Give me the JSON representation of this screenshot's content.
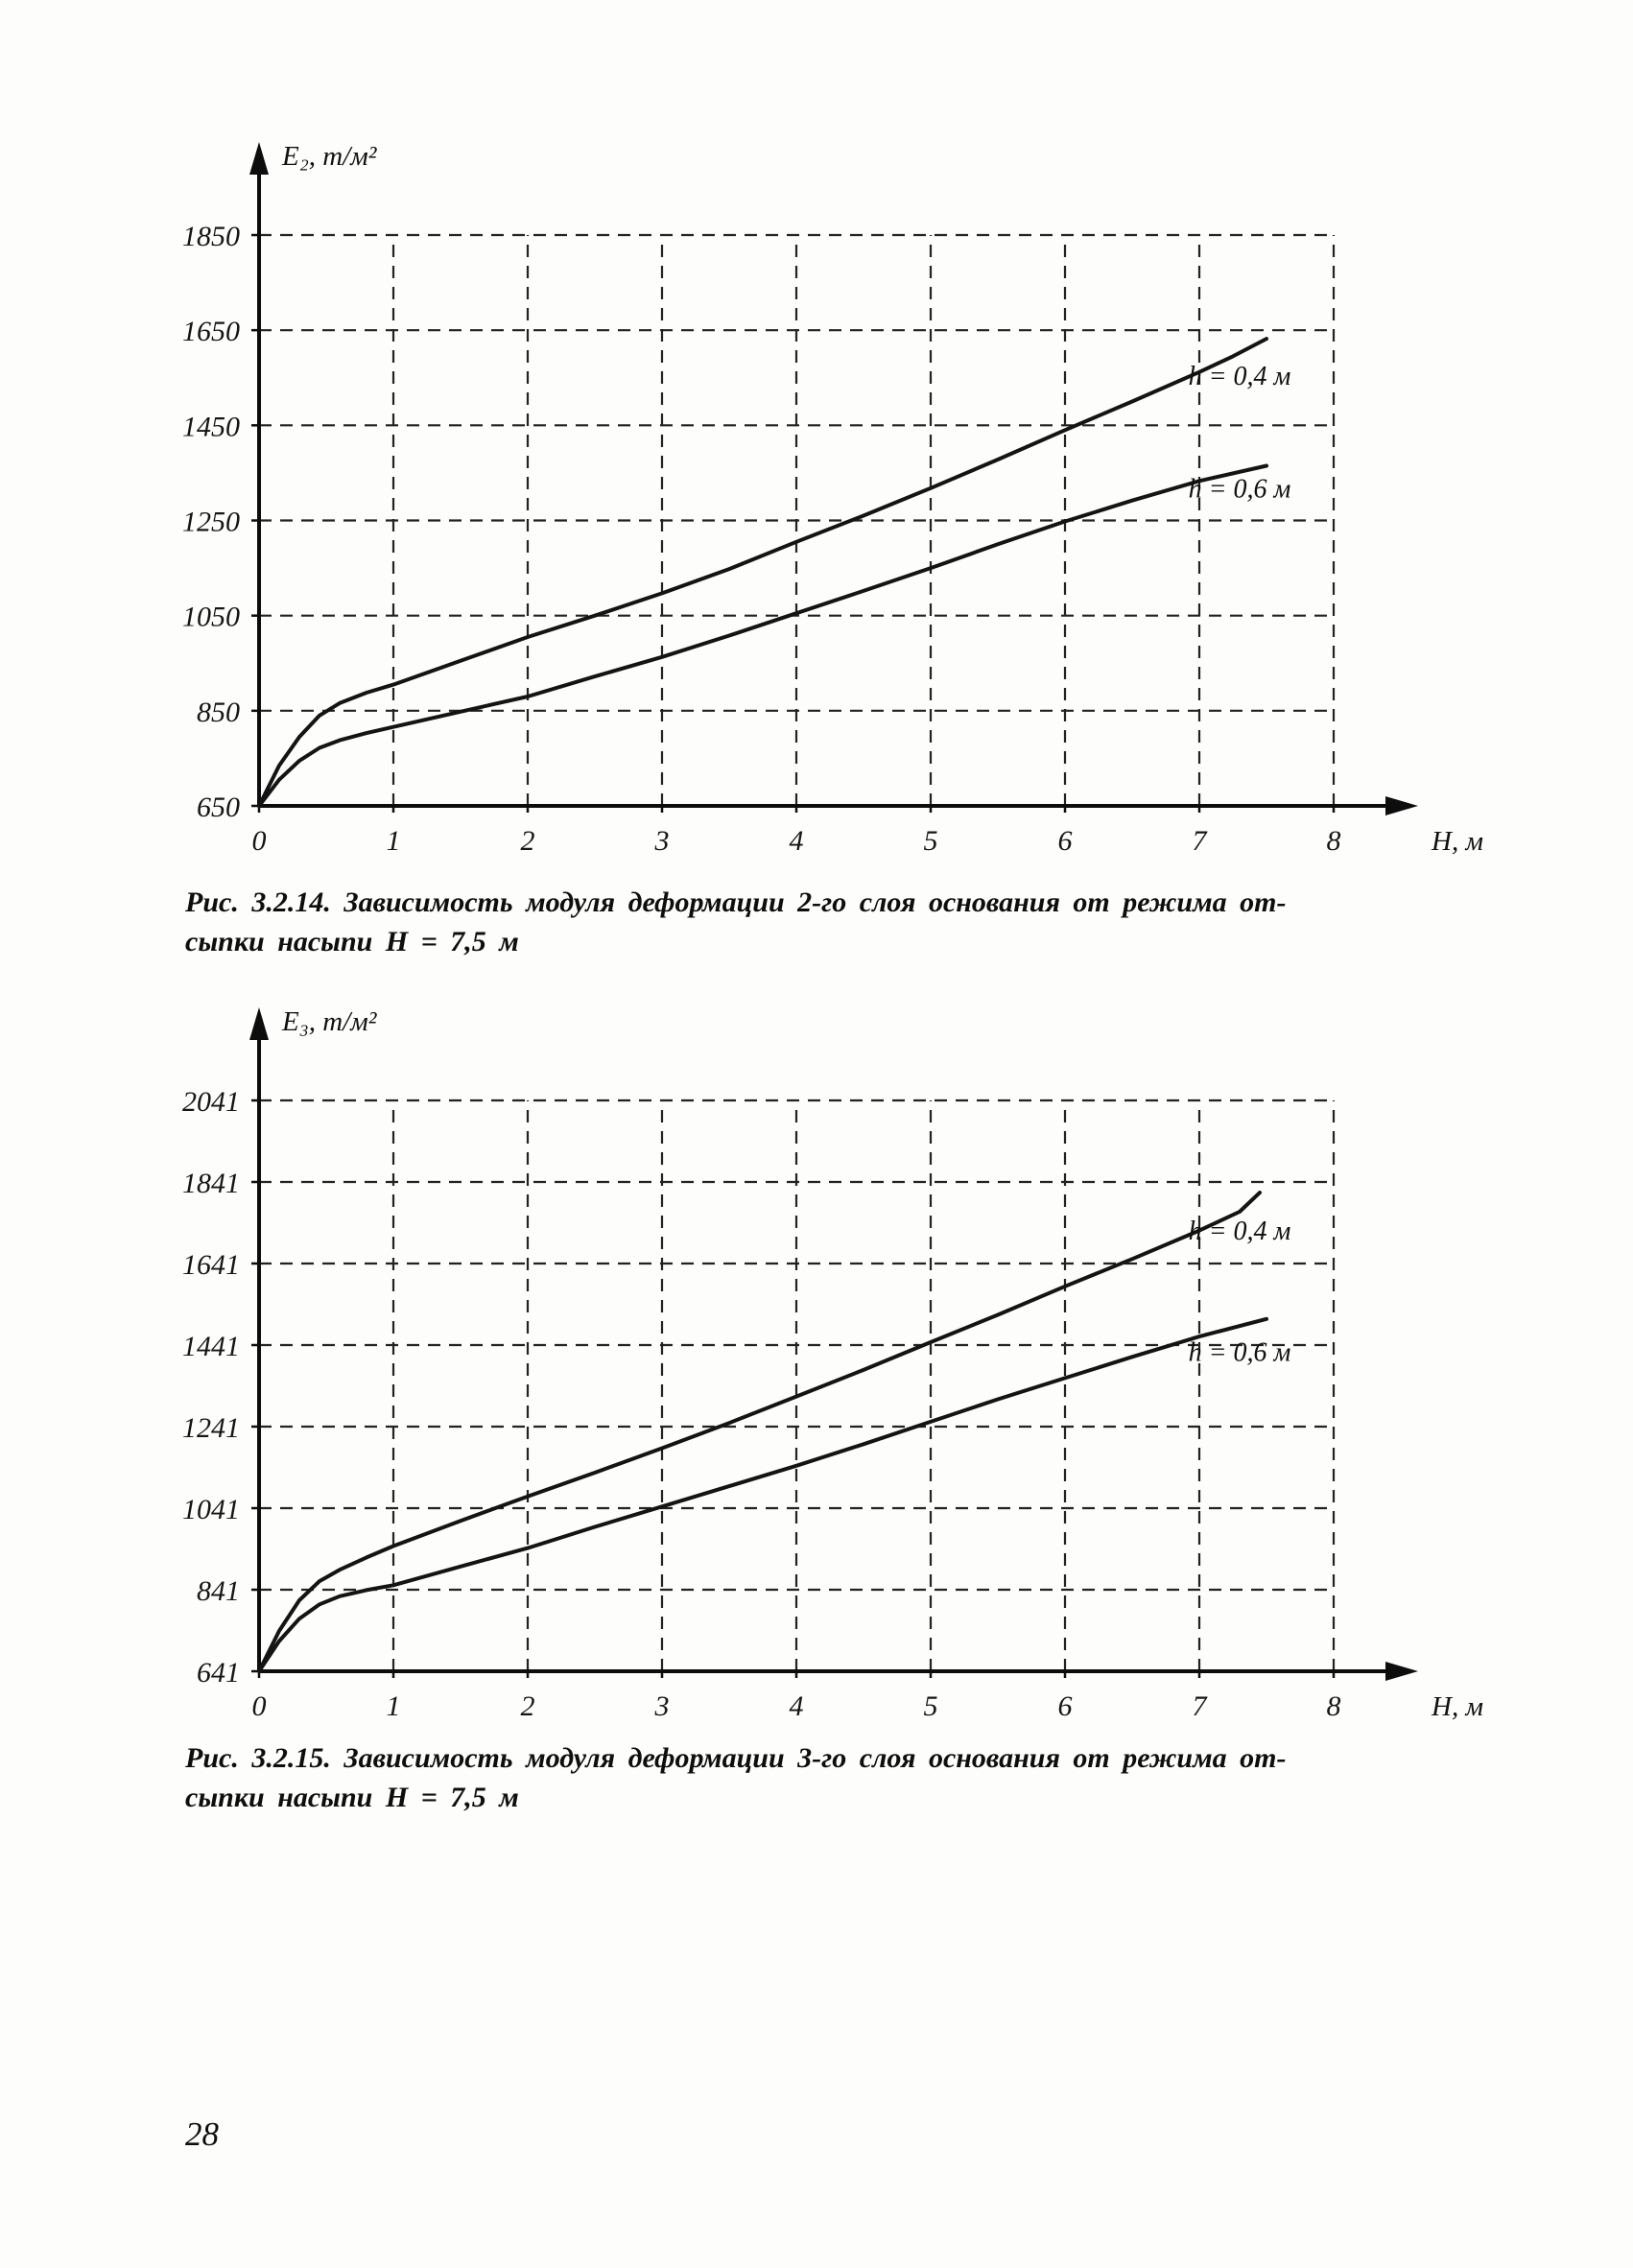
{
  "page": {
    "number": "28"
  },
  "figures": [
    {
      "caption_line1": "Рис. 3.2.14. Зависимость модуля деформации 2-го слоя основания от режима от-",
      "caption_line2": "сыпки насыпи Н = 7,5 м"
    },
    {
      "caption_line1": "Рис. 3.2.15. Зависимость модуля деформации 3-го слоя основания от режима от-",
      "caption_line2": "сыпки насыпи Н = 7,5 м"
    }
  ],
  "colors": {
    "ink": "#141414",
    "paper": "#fdfdfb"
  },
  "chart_data": [
    {
      "type": "line",
      "title": "",
      "y_axis_label": "E₂, т/м²",
      "x_axis_label": "Н, м",
      "x_ticks": [
        0,
        1,
        2,
        3,
        4,
        5,
        6,
        7,
        8
      ],
      "y_ticks": [
        650,
        850,
        1050,
        1250,
        1450,
        1650,
        1850
      ],
      "xlim": [
        0,
        8
      ],
      "ylim": [
        650,
        1850
      ],
      "grid": "dashed",
      "legend_position": "inline-labels",
      "series": [
        {
          "name": "h = 0,4 м",
          "label_pos": [
            7.3,
            1535
          ],
          "points": [
            [
              0,
              650
            ],
            [
              0.15,
              735
            ],
            [
              0.3,
              795
            ],
            [
              0.45,
              840
            ],
            [
              0.6,
              866
            ],
            [
              0.8,
              888
            ],
            [
              1,
              905
            ],
            [
              1.5,
              955
            ],
            [
              2,
              1005
            ],
            [
              2.5,
              1050
            ],
            [
              3,
              1097
            ],
            [
              3.5,
              1148
            ],
            [
              4,
              1205
            ],
            [
              4.5,
              1260
            ],
            [
              5,
              1318
            ],
            [
              5.5,
              1378
            ],
            [
              6,
              1440
            ],
            [
              6.5,
              1500
            ],
            [
              7,
              1562
            ],
            [
              7.25,
              1595
            ],
            [
              7.5,
              1632
            ]
          ]
        },
        {
          "name": "h = 0,6 м",
          "label_pos": [
            7.3,
            1298
          ],
          "points": [
            [
              0,
              650
            ],
            [
              0.15,
              705
            ],
            [
              0.3,
              745
            ],
            [
              0.45,
              772
            ],
            [
              0.6,
              788
            ],
            [
              0.8,
              803
            ],
            [
              1,
              816
            ],
            [
              1.5,
              848
            ],
            [
              2,
              880
            ],
            [
              2.5,
              922
            ],
            [
              3,
              963
            ],
            [
              3.5,
              1008
            ],
            [
              4,
              1055
            ],
            [
              4.5,
              1102
            ],
            [
              5,
              1150
            ],
            [
              5.5,
              1200
            ],
            [
              6,
              1248
            ],
            [
              6.5,
              1292
            ],
            [
              7,
              1333
            ],
            [
              7.5,
              1365
            ]
          ]
        }
      ]
    },
    {
      "type": "line",
      "title": "",
      "y_axis_label": "E₃, т/м²",
      "x_axis_label": "Н, м",
      "x_ticks": [
        0,
        1,
        2,
        3,
        4,
        5,
        6,
        7,
        8
      ],
      "y_ticks": [
        641,
        841,
        1041,
        1241,
        1441,
        1641,
        1841,
        2041
      ],
      "xlim": [
        0,
        8
      ],
      "ylim": [
        641,
        2041
      ],
      "grid": "dashed",
      "legend_position": "inline-labels",
      "series": [
        {
          "name": "h = 0,4 м",
          "label_pos": [
            7.3,
            1700
          ],
          "points": [
            [
              0,
              641
            ],
            [
              0.15,
              740
            ],
            [
              0.3,
              815
            ],
            [
              0.45,
              862
            ],
            [
              0.6,
              890
            ],
            [
              0.8,
              920
            ],
            [
              1,
              948
            ],
            [
              1.5,
              1010
            ],
            [
              2,
              1070
            ],
            [
              2.5,
              1128
            ],
            [
              3,
              1188
            ],
            [
              3.5,
              1250
            ],
            [
              4,
              1315
            ],
            [
              4.5,
              1380
            ],
            [
              5,
              1448
            ],
            [
              5.5,
              1515
            ],
            [
              6,
              1585
            ],
            [
              6.5,
              1652
            ],
            [
              7,
              1722
            ],
            [
              7.3,
              1768
            ],
            [
              7.45,
              1815
            ]
          ]
        },
        {
          "name": "h = 0,6 м",
          "label_pos": [
            7.3,
            1402
          ],
          "points": [
            [
              0,
              641
            ],
            [
              0.15,
              715
            ],
            [
              0.3,
              770
            ],
            [
              0.45,
              805
            ],
            [
              0.6,
              825
            ],
            [
              0.8,
              840
            ],
            [
              1,
              852
            ],
            [
              1.5,
              898
            ],
            [
              2,
              943
            ],
            [
              2.5,
              995
            ],
            [
              3,
              1045
            ],
            [
              3.5,
              1095
            ],
            [
              4,
              1145
            ],
            [
              4.5,
              1198
            ],
            [
              5,
              1253
            ],
            [
              5.5,
              1308
            ],
            [
              6,
              1360
            ],
            [
              6.5,
              1412
            ],
            [
              7,
              1462
            ],
            [
              7.5,
              1505
            ]
          ]
        }
      ]
    }
  ]
}
